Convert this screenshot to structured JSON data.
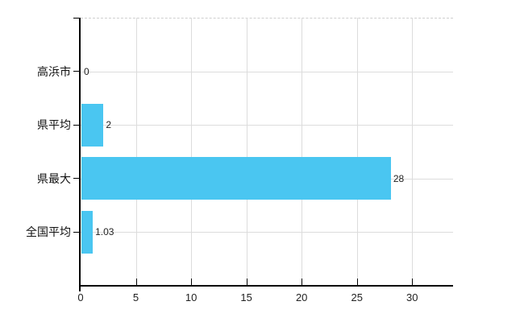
{
  "chart_data": {
    "type": "bar",
    "orientation": "horizontal",
    "title": "",
    "categories": [
      "高浜市",
      "県平均",
      "県最大",
      "全国平均"
    ],
    "values": [
      0,
      2,
      28,
      1.03
    ],
    "value_labels": [
      "0",
      "2",
      "28",
      "1.03"
    ],
    "x_ticks": [
      "0",
      "5",
      "10",
      "15",
      "20",
      "25",
      "30"
    ],
    "x_tick_values": [
      0,
      5,
      10,
      15,
      20,
      25,
      30
    ],
    "xlim": [
      0,
      33.7
    ],
    "xlabel": "",
    "ylabel": "",
    "grid": true,
    "legend": false,
    "colors": {
      "bar": "#4ac6f1",
      "axis": "#000000",
      "gridline": "#dcdcdc",
      "top_gridline_dashed": "#cfcfcf",
      "category_label": "#111111",
      "value_label": "#222222",
      "tick_label": "#222222",
      "background": "#ffffff"
    }
  }
}
